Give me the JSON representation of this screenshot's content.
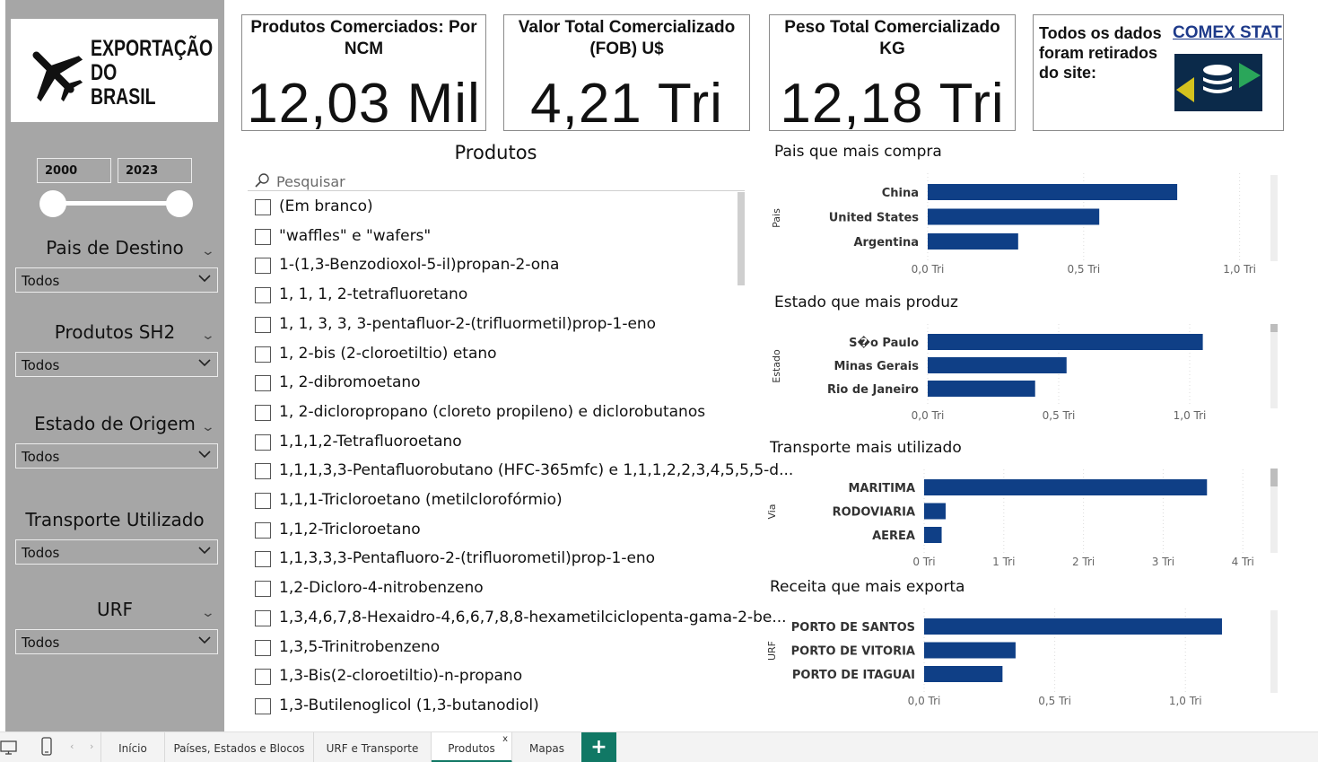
{
  "logo": {
    "line1": "EXPORTAÇÃO",
    "line2": "DO",
    "line3": "BRASIL",
    "icon": "airplane-icon"
  },
  "filters": {
    "year_start": "2000",
    "year_end": "2023",
    "year_range": [
      2000,
      2023
    ],
    "items": [
      {
        "label": "Pais de Destino",
        "value": "Todos"
      },
      {
        "label": "Produtos SH2",
        "value": "Todos"
      },
      {
        "label": "Estado de Origem",
        "value": "Todos"
      },
      {
        "label": "Transporte Utilizado",
        "value": "Todos"
      },
      {
        "label": "URF",
        "value": "Todos"
      }
    ]
  },
  "kpis": [
    {
      "title_l1": "Produtos Comerciados: Por",
      "title_l2": "NCM",
      "value": "12,03 Mil"
    },
    {
      "title_l1": "Valor Total Comercializado",
      "title_l2": "(FOB) U$",
      "value": "4,21 Tri"
    },
    {
      "title_l1": "Peso Total Comercializado",
      "title_l2": "KG",
      "value": "12,18 Tri"
    }
  ],
  "source": {
    "text_l1": "Todos os dados",
    "text_l2": "foram retirados",
    "text_l3": "do site:",
    "link": "COMEX STAT",
    "icon": "comexstat-logo-icon"
  },
  "products": {
    "title": "Produtos",
    "search_placeholder": "Pesquisar",
    "items": [
      "(Em branco)",
      "\"waffles\" e \"wafers\"",
      "1-(1,3-Benzodioxol-5-il)propan-2-ona",
      "1, 1, 1, 2-tetrafluoretano",
      "1, 1, 3, 3, 3-pentafluor-2-(trifluormetil)prop-1-eno",
      "1, 2-bis (2-cloroetiltio) etano",
      "1, 2-dibromoetano",
      "1, 2-dicloropropano (cloreto propileno) e diclorobutanos",
      "1,1,1,2-Tetrafluoroetano",
      "1,1,1,3,3-Pentafluorobutano (HFC-365mfc) e 1,1,1,2,2,3,4,5,5,5-d...",
      "1,1,1-Tricloroetano (metilclorofórmio)",
      "1,1,2-Tricloroetano",
      "1,1,3,3,3-Pentafluoro-2-(trifluorometil)prop-1-eno",
      "1,2-Dicloro-4-nitrobenzeno",
      "1,3,4,6,7,8-Hexaidro-4,6,6,7,8,8-hexametilciclopenta-gama-2-be...",
      "1,3,5-Trinitrobenzeno",
      "1,3-Bis(2-cloroetiltio)-n-propano",
      "1,3-Butilenoglicol (1,3-butanodiol)"
    ]
  },
  "chart_data": [
    {
      "type": "bar",
      "orientation": "horizontal",
      "title": "Pais que mais compra",
      "ylabel": "Pais",
      "categories": [
        "China",
        "United States",
        "Argentina"
      ],
      "values": [
        0.8,
        0.55,
        0.29
      ],
      "unit": "Tri",
      "xlim": [
        0,
        1.05
      ],
      "ticks": [
        0,
        0.5,
        1.0
      ],
      "tick_labels": [
        "0,0 Tri",
        "0,5 Tri",
        "1,0 Tri"
      ],
      "color": "#0f3f86"
    },
    {
      "type": "bar",
      "orientation": "horizontal",
      "title": "Estado que mais produz",
      "ylabel": "Estado",
      "categories": [
        "S�o Paulo",
        "Minas Gerais",
        "Rio de Janeiro"
      ],
      "values": [
        1.05,
        0.53,
        0.41
      ],
      "unit": "Tri",
      "xlim": [
        0,
        1.25
      ],
      "ticks": [
        0,
        0.5,
        1.0
      ],
      "tick_labels": [
        "0,0 Tri",
        "0,5 Tri",
        "1,0 Tri"
      ],
      "color": "#0f3f86"
    },
    {
      "type": "bar",
      "orientation": "horizontal",
      "title": "Transporte mais utilizado",
      "ylabel": "Via",
      "categories": [
        "MARITIMA",
        "RODOVIARIA",
        "AEREA"
      ],
      "values": [
        3.55,
        0.27,
        0.22
      ],
      "unit": "Tri",
      "xlim": [
        0,
        4.2
      ],
      "ticks": [
        0,
        1,
        2,
        3,
        4
      ],
      "tick_labels": [
        "0 Tri",
        "1 Tri",
        "2 Tri",
        "3 Tri",
        "4 Tri"
      ],
      "color": "#0f3f86"
    },
    {
      "type": "bar",
      "orientation": "horizontal",
      "title": "Receita que mais exporta",
      "ylabel": "URF",
      "categories": [
        "PORTO DE SANTOS",
        "PORTO DE VITORIA",
        "PORTO DE ITAGUAI"
      ],
      "values": [
        1.14,
        0.35,
        0.3
      ],
      "unit": "Tri",
      "xlim": [
        0,
        1.25
      ],
      "ticks": [
        0,
        0.5,
        1.0
      ],
      "tick_labels": [
        "0,0 Tri",
        "0,5 Tri",
        "1,0 Tri"
      ],
      "color": "#0f3f86"
    }
  ],
  "tabs": {
    "items": [
      {
        "label": "Início",
        "active": false
      },
      {
        "label": "Países, Estados e Blocos",
        "active": false
      },
      {
        "label": "URF e Transporte",
        "active": false
      },
      {
        "label": "Produtos",
        "active": true
      },
      {
        "label": "Mapas",
        "active": false
      }
    ],
    "close_glyph": "x",
    "add_glyph": "+"
  }
}
